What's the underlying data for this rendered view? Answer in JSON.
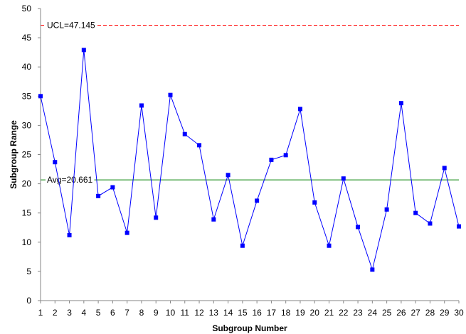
{
  "chart_data": {
    "type": "line",
    "xlabel": "Subgroup Number",
    "ylabel": "Subgroup Range",
    "xlim": [
      1,
      30
    ],
    "ylim": [
      0,
      50
    ],
    "y_ticks": [
      0,
      5,
      10,
      15,
      20,
      25,
      30,
      35,
      40,
      45,
      50
    ],
    "x_ticks": [
      1,
      2,
      3,
      4,
      5,
      6,
      7,
      8,
      9,
      10,
      11,
      12,
      13,
      14,
      15,
      16,
      17,
      18,
      19,
      20,
      21,
      22,
      23,
      24,
      25,
      26,
      27,
      28,
      29,
      30
    ],
    "grid": false,
    "legend": "none",
    "series": [
      {
        "x": [
          1,
          2,
          3,
          4,
          5,
          6,
          7,
          8,
          9,
          10,
          11,
          12,
          13,
          14,
          15,
          16,
          17,
          18,
          19,
          20,
          21,
          22,
          23,
          24,
          25,
          26,
          27,
          28,
          29,
          30
        ],
        "values": [
          35.0,
          23.7,
          11.2,
          42.9,
          17.9,
          19.4,
          11.6,
          33.4,
          14.2,
          35.2,
          28.5,
          26.6,
          13.9,
          21.5,
          9.4,
          17.1,
          24.1,
          24.9,
          32.8,
          16.8,
          9.4,
          20.9,
          12.6,
          5.3,
          15.6,
          33.8,
          15.0,
          13.2,
          22.7,
          12.7
        ],
        "color": "#0000ff"
      }
    ],
    "reference_lines": [
      {
        "label": "UCL=47.145",
        "value": 47.145,
        "color": "#ff0000",
        "style": "dashed"
      },
      {
        "label": "Avg=20.661",
        "value": 20.661,
        "color": "#008000",
        "style": "solid"
      }
    ]
  }
}
